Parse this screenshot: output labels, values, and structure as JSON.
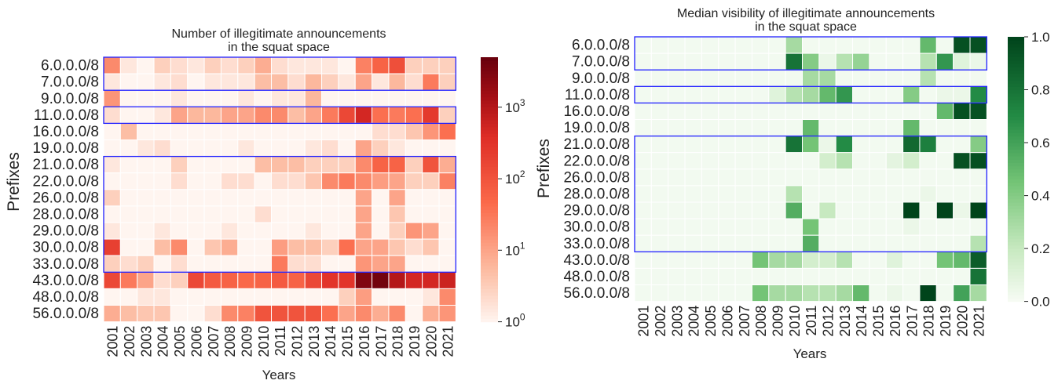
{
  "chart_data": [
    {
      "type": "heatmap",
      "title": "Number of illegitimate announcements\nin the squat space",
      "xlabel": "Years",
      "ylabel": "Prefixes",
      "colormap": "Reds",
      "scale": "log",
      "colorbar": {
        "range": [
          1,
          5000
        ],
        "ticks": [
          1,
          10,
          100,
          1000
        ],
        "tick_labels": [
          "10",
          "10",
          "10",
          "10"
        ],
        "tick_exponents": [
          "0",
          "1",
          "2",
          "3"
        ]
      },
      "x": [
        "2001",
        "2002",
        "2003",
        "2004",
        "2005",
        "2006",
        "2007",
        "2008",
        "2009",
        "2010",
        "2011",
        "2012",
        "2013",
        "2014",
        "2015",
        "2016",
        "2017",
        "2018",
        "2019",
        "2020",
        "2021"
      ],
      "y": [
        "6.0.0.0/8",
        "7.0.0.0/8",
        "9.0.0.0/8",
        "11.0.0.0/8",
        "16.0.0.0/8",
        "19.0.0.0/8",
        "21.0.0.0/8",
        "22.0.0.0/8",
        "26.0.0.0/8",
        "28.0.0.0/8",
        "29.0.0.0/8",
        "30.0.0.0/8",
        "33.0.0.0/8",
        "43.0.0.0/8",
        "48.0.0.0/8",
        "56.0.0.0/8"
      ],
      "values": [
        [
          20,
          1.5,
          1,
          3,
          2,
          1.5,
          3,
          2,
          3,
          8,
          2,
          1.5,
          1.5,
          1.5,
          1,
          25,
          60,
          120,
          3,
          3,
          3
        ],
        [
          1.5,
          1,
          1,
          1.5,
          2,
          1,
          1.5,
          1.5,
          1.5,
          5,
          5,
          2,
          6,
          3,
          1.5,
          10,
          1.5,
          6,
          2,
          30,
          3
        ],
        [
          15,
          1,
          1,
          1,
          1.5,
          1,
          1,
          1,
          1.5,
          1,
          1.5,
          1.5,
          6,
          1,
          1,
          1,
          1,
          1,
          1,
          1,
          1
        ],
        [
          2,
          1,
          1,
          1.5,
          10,
          6,
          6,
          10,
          10,
          20,
          20,
          5,
          10,
          30,
          150,
          500,
          40,
          30,
          40,
          250,
          3
        ],
        [
          1,
          5,
          1,
          1,
          1,
          1,
          1,
          1,
          1,
          1,
          1,
          1,
          1,
          1,
          1,
          1,
          2,
          2,
          4,
          15,
          40
        ],
        [
          1,
          1,
          1.5,
          2,
          1,
          1,
          1,
          1,
          1.5,
          1,
          1,
          1,
          1.5,
          2,
          1,
          10,
          3,
          1.5,
          1,
          1,
          1
        ],
        [
          1.5,
          1,
          1,
          1,
          3,
          1,
          1,
          1,
          1,
          5,
          5,
          5,
          3,
          3,
          3,
          20,
          60,
          60,
          3,
          100,
          8
        ],
        [
          1,
          1,
          1,
          1,
          2,
          1,
          1,
          2,
          2,
          1,
          2,
          2,
          4,
          20,
          30,
          20,
          12,
          10,
          3,
          3,
          25
        ],
        [
          3,
          1,
          1,
          1,
          1,
          1,
          1,
          1,
          1,
          1,
          1,
          1,
          1,
          1,
          1,
          10,
          1,
          10,
          1,
          1,
          1
        ],
        [
          1,
          1,
          1,
          1,
          1,
          1,
          1,
          1,
          1,
          2,
          1,
          1,
          1,
          1,
          1,
          10,
          1,
          4,
          1,
          1,
          1
        ],
        [
          1.5,
          1,
          1,
          1.5,
          1,
          1,
          1,
          1.5,
          1,
          1,
          1,
          1,
          1.5,
          1,
          1,
          10,
          1,
          3,
          15,
          10,
          1
        ],
        [
          200,
          1,
          1,
          5,
          20,
          1,
          4,
          8,
          1,
          1,
          12,
          5,
          5,
          3,
          40,
          10,
          10,
          4,
          2,
          4,
          1
        ],
        [
          3,
          2,
          3,
          1,
          2,
          1,
          1,
          1,
          1,
          1,
          30,
          2,
          2,
          1,
          1,
          15,
          10,
          10,
          1,
          1,
          1
        ],
        [
          150,
          30,
          10,
          2,
          3,
          150,
          80,
          60,
          50,
          60,
          80,
          60,
          150,
          300,
          300,
          3000,
          4000,
          1000,
          500,
          500,
          600
        ],
        [
          1,
          1,
          1.5,
          1.5,
          1,
          1,
          1,
          1,
          1,
          1,
          1,
          1,
          1,
          1,
          3,
          12,
          1,
          1,
          1,
          1.5,
          20
        ],
        [
          8,
          5,
          4,
          4,
          1,
          1,
          2,
          20,
          25,
          100,
          100,
          100,
          100,
          40,
          10,
          20,
          8,
          20,
          1,
          8,
          15
        ]
      ],
      "highlight_boxes": [
        [
          "6.0.0.0/8",
          "7.0.0.0/8"
        ],
        [
          "11.0.0.0/8",
          "11.0.0.0/8"
        ],
        [
          "21.0.0.0/8",
          "33.0.0.0/8"
        ]
      ],
      "highlight_color": "#2020ff"
    },
    {
      "type": "heatmap",
      "title": "Median visibility of illegitimate announcements\nin the squat space",
      "xlabel": "Years",
      "ylabel": "Prefixes",
      "colormap": "Greens",
      "scale": "linear",
      "colorbar": {
        "range": [
          0,
          1
        ],
        "ticks": [
          0,
          0.2,
          0.4,
          0.6,
          0.8,
          1.0
        ],
        "tick_labels": [
          "0.0",
          "0.2",
          "0.4",
          "0.6",
          "0.8",
          "1.0"
        ]
      },
      "x": [
        "2001",
        "2002",
        "2003",
        "2004",
        "2005",
        "2006",
        "2007",
        "2008",
        "2009",
        "2010",
        "2011",
        "2012",
        "2013",
        "2014",
        "2015",
        "2016",
        "2017",
        "2018",
        "2019",
        "2020",
        "2021"
      ],
      "y": [
        "6.0.0.0/8",
        "7.0.0.0/8",
        "9.0.0.0/8",
        "11.0.0.0/8",
        "16.0.0.0/8",
        "19.0.0.0/8",
        "21.0.0.0/8",
        "22.0.0.0/8",
        "26.0.0.0/8",
        "28.0.0.0/8",
        "29.0.0.0/8",
        "30.0.0.0/8",
        "33.0.0.0/8",
        "43.0.0.0/8",
        "48.0.0.0/8",
        "56.0.0.0/8"
      ],
      "values": [
        [
          0.02,
          0.02,
          0.02,
          0.02,
          0.02,
          0.02,
          0.02,
          0.02,
          0.02,
          0.3,
          0.02,
          0.02,
          0.02,
          0.02,
          0.02,
          0.02,
          0.02,
          0.5,
          0.02,
          0.95,
          0.95
        ],
        [
          0.02,
          0.02,
          0.02,
          0.02,
          0.02,
          0.02,
          0.02,
          0.02,
          0.02,
          0.8,
          0.4,
          0.05,
          0.25,
          0.35,
          0.02,
          0.02,
          0.02,
          0.25,
          0.65,
          0.1,
          0.05
        ],
        [
          0.02,
          0.02,
          0.02,
          0.02,
          0.02,
          0.02,
          0.02,
          0.02,
          0.02,
          0.02,
          0.3,
          0.3,
          0.02,
          0.02,
          0.02,
          0.02,
          0.02,
          0.25,
          0.02,
          0.02,
          0.02
        ],
        [
          0.02,
          0.02,
          0.02,
          0.02,
          0.02,
          0.02,
          0.02,
          0.02,
          0.1,
          0.25,
          0.3,
          0.5,
          0.65,
          0.02,
          0.02,
          0.02,
          0.4,
          0.02,
          0.05,
          0.05,
          0.7
        ],
        [
          0.02,
          0.02,
          0.02,
          0.02,
          0.02,
          0.02,
          0.02,
          0.02,
          0.02,
          0.02,
          0.02,
          0.02,
          0.02,
          0.02,
          0.02,
          0.02,
          0.02,
          0.02,
          0.5,
          0.95,
          0.95
        ],
        [
          0.02,
          0.02,
          0.02,
          0.02,
          0.02,
          0.02,
          0.02,
          0.02,
          0.02,
          0.02,
          0.5,
          0.02,
          0.02,
          0.02,
          0.02,
          0.02,
          0.5,
          0.02,
          0.02,
          0.02,
          0.02
        ],
        [
          0.02,
          0.02,
          0.02,
          0.02,
          0.02,
          0.02,
          0.02,
          0.02,
          0.02,
          0.8,
          0.45,
          0.05,
          0.7,
          0.02,
          0.02,
          0.02,
          0.85,
          0.75,
          0.02,
          0.02,
          0.4
        ],
        [
          0.02,
          0.02,
          0.02,
          0.02,
          0.02,
          0.02,
          0.02,
          0.02,
          0.02,
          0.02,
          0.02,
          0.15,
          0.25,
          0.02,
          0.02,
          0.08,
          0.15,
          0.02,
          0.02,
          0.95,
          0.95
        ],
        [
          0.02,
          0.02,
          0.02,
          0.02,
          0.02,
          0.02,
          0.02,
          0.02,
          0.02,
          0.02,
          0.02,
          0.02,
          0.02,
          0.02,
          0.02,
          0.02,
          0.02,
          0.02,
          0.02,
          0.02,
          0.02
        ],
        [
          0.02,
          0.02,
          0.02,
          0.02,
          0.02,
          0.02,
          0.02,
          0.02,
          0.02,
          0.25,
          0.02,
          0.02,
          0.02,
          0.02,
          0.02,
          0.02,
          0.02,
          0.05,
          0.02,
          0.02,
          0.02
        ],
        [
          0.02,
          0.02,
          0.02,
          0.02,
          0.02,
          0.02,
          0.02,
          0.02,
          0.02,
          0.55,
          0.02,
          0.2,
          0.02,
          0.02,
          0.02,
          0.02,
          1.0,
          0.02,
          1.0,
          0.05,
          1.0
        ],
        [
          0.02,
          0.02,
          0.02,
          0.02,
          0.02,
          0.02,
          0.02,
          0.02,
          0.02,
          0.02,
          0.45,
          0.02,
          0.02,
          0.02,
          0.02,
          0.02,
          0.05,
          0.02,
          0.02,
          0.02,
          0.02
        ],
        [
          0.02,
          0.02,
          0.02,
          0.02,
          0.02,
          0.02,
          0.02,
          0.02,
          0.02,
          0.02,
          0.55,
          0.02,
          0.02,
          0.02,
          0.02,
          0.02,
          0.02,
          0.02,
          0.02,
          0.02,
          0.25
        ],
        [
          0.02,
          0.02,
          0.02,
          0.02,
          0.02,
          0.02,
          0.02,
          0.45,
          0.3,
          0.3,
          0.15,
          0.15,
          0.25,
          0.02,
          0.02,
          0.1,
          0.02,
          0.02,
          0.45,
          0.5,
          0.9
        ],
        [
          0.02,
          0.02,
          0.02,
          0.02,
          0.02,
          0.02,
          0.02,
          0.02,
          0.02,
          0.02,
          0.02,
          0.02,
          0.02,
          0.02,
          0.02,
          0.02,
          0.02,
          0.02,
          0.02,
          0.02,
          0.8
        ],
        [
          0.02,
          0.02,
          0.02,
          0.02,
          0.02,
          0.02,
          0.02,
          0.45,
          0.3,
          0.3,
          0.25,
          0.25,
          0.3,
          0.5,
          0.02,
          0.05,
          0.02,
          1.0,
          0.02,
          0.6,
          0.3
        ]
      ],
      "highlight_boxes": [
        [
          "6.0.0.0/8",
          "7.0.0.0/8"
        ],
        [
          "11.0.0.0/8",
          "11.0.0.0/8"
        ],
        [
          "21.0.0.0/8",
          "33.0.0.0/8"
        ]
      ],
      "highlight_color": "#2020ff"
    }
  ]
}
